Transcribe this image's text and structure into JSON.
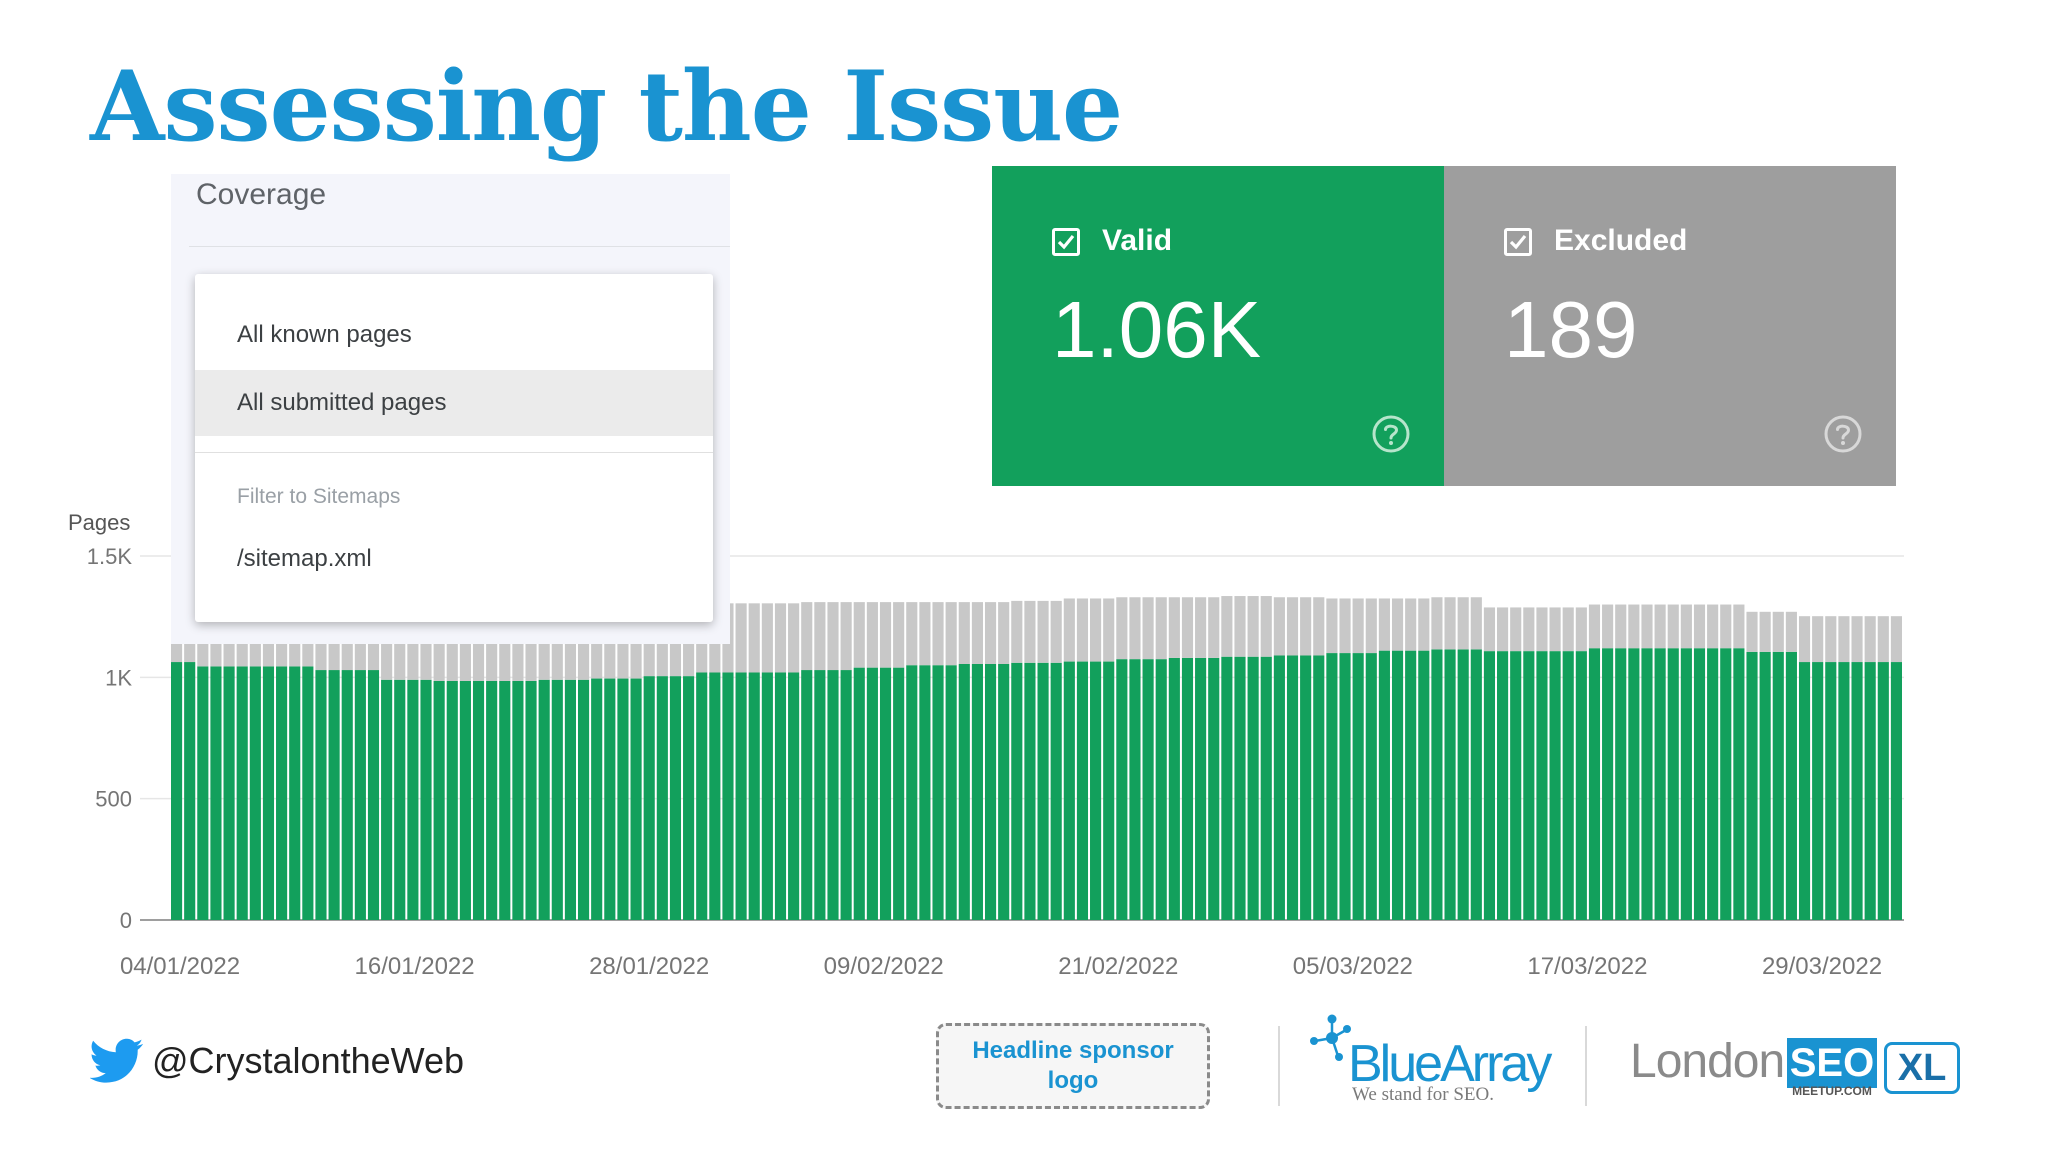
{
  "slide": {
    "title": "Assessing the Issue"
  },
  "coverage": {
    "title": "Coverage",
    "menu": {
      "items": [
        "All known pages",
        "All submitted pages"
      ],
      "selected_index": 1,
      "section_label": "Filter to Sitemaps",
      "sitemap_item": "/sitemap.xml"
    }
  },
  "cards": {
    "valid": {
      "label": "Valid",
      "value": "1.06K",
      "color": "#12a05c",
      "checked": true,
      "help_icon": "help-circle-icon"
    },
    "excluded": {
      "label": "Excluded",
      "value": "189",
      "color": "#9e9e9e",
      "checked": true,
      "help_icon": "help-circle-icon"
    }
  },
  "chart_data": {
    "type": "bar",
    "stacked": true,
    "ylabel": "Pages",
    "ylim": [
      0,
      1500
    ],
    "yticks": [
      0,
      500,
      1000,
      1500
    ],
    "ytick_labels": [
      "0",
      "500",
      "1K",
      "1.5K"
    ],
    "xtick_labels": [
      "04/01/2022",
      "16/01/2022",
      "28/01/2022",
      "09/02/2022",
      "21/02/2022",
      "05/03/2022",
      "17/03/2022",
      "29/03/2022"
    ],
    "grid": true,
    "series": [
      {
        "name": "Valid",
        "color": "#12a05c",
        "values": [
          1063,
          1063,
          1045,
          1045,
          1045,
          1045,
          1045,
          1045,
          1045,
          1045,
          1045,
          1030,
          1030,
          1030,
          1030,
          1030,
          990,
          990,
          990,
          990,
          985,
          985,
          985,
          985,
          985,
          985,
          985,
          985,
          990,
          990,
          990,
          990,
          995,
          995,
          995,
          995,
          1005,
          1005,
          1005,
          1005,
          1020,
          1020,
          1020,
          1020,
          1020,
          1020,
          1020,
          1020,
          1030,
          1030,
          1030,
          1030,
          1040,
          1040,
          1040,
          1040,
          1050,
          1050,
          1050,
          1050,
          1055,
          1055,
          1055,
          1055,
          1060,
          1060,
          1060,
          1060,
          1065,
          1065,
          1065,
          1065,
          1075,
          1075,
          1075,
          1075,
          1080,
          1080,
          1080,
          1080,
          1085,
          1085,
          1085,
          1085,
          1090,
          1090,
          1090,
          1090,
          1100,
          1100,
          1100,
          1100,
          1110,
          1110,
          1110,
          1110,
          1115,
          1115,
          1115,
          1115,
          1108,
          1108,
          1108,
          1108,
          1108,
          1108,
          1108,
          1108,
          1120,
          1120,
          1120,
          1120,
          1120,
          1120,
          1120,
          1120,
          1120,
          1120,
          1120,
          1120,
          1105,
          1105,
          1105,
          1105,
          1063,
          1063,
          1063,
          1063,
          1063,
          1063,
          1063,
          1063
        ]
      },
      {
        "name": "Excluded",
        "color": "#c8c8c8",
        "values": [
          90,
          90,
          110,
          110,
          110,
          110,
          110,
          110,
          110,
          110,
          110,
          110,
          110,
          110,
          110,
          110,
          150,
          150,
          150,
          150,
          155,
          155,
          155,
          155,
          155,
          155,
          155,
          155,
          150,
          150,
          150,
          150,
          310,
          310,
          310,
          310,
          295,
          295,
          295,
          295,
          285,
          285,
          285,
          285,
          285,
          285,
          285,
          285,
          280,
          280,
          280,
          280,
          270,
          270,
          270,
          270,
          260,
          260,
          260,
          260,
          255,
          255,
          255,
          255,
          255,
          255,
          255,
          255,
          260,
          260,
          260,
          260,
          255,
          255,
          255,
          255,
          250,
          250,
          250,
          250,
          250,
          250,
          250,
          250,
          240,
          240,
          240,
          240,
          225,
          225,
          225,
          225,
          215,
          215,
          215,
          215,
          215,
          215,
          215,
          215,
          180,
          180,
          180,
          180,
          180,
          180,
          180,
          180,
          180,
          180,
          180,
          180,
          180,
          180,
          180,
          180,
          180,
          180,
          180,
          180,
          165,
          165,
          165,
          165,
          189,
          189,
          189,
          189,
          189,
          189,
          189,
          189
        ]
      }
    ]
  },
  "footer": {
    "twitter_handle": "@CrystalontheWeb",
    "sponsor_text": "Headline sponsor logo",
    "bluearray_name": "BlueArray",
    "bluearray_tagline": "We stand for SEO.",
    "london_text": "London",
    "seo_text": "SEO",
    "meetup_text": "MEETUP.COM",
    "xl_text": "XL",
    "brand_color": "#1a93d1"
  }
}
